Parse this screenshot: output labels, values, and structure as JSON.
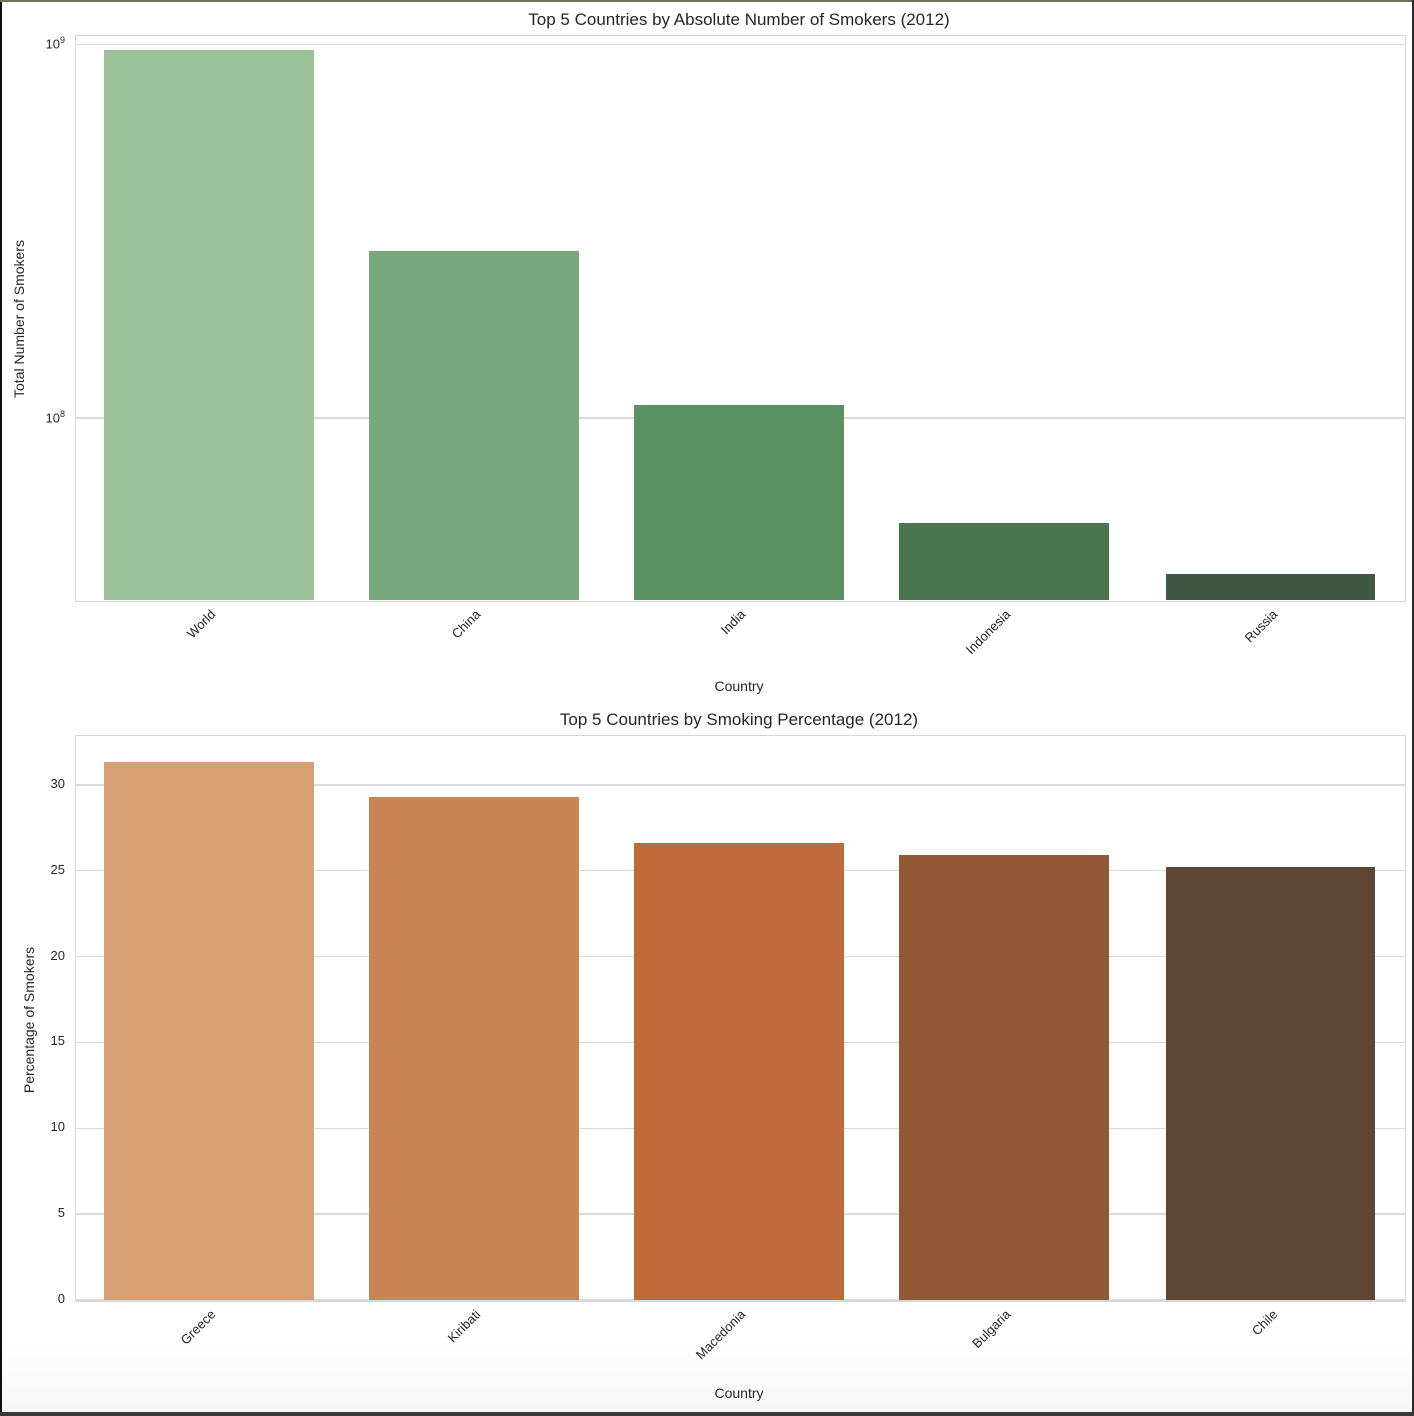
{
  "chart_data": [
    {
      "type": "bar",
      "title": "Top 5 Countries by Absolute Number of Smokers (2012)",
      "xlabel": "Country",
      "ylabel": "Total Number of Smokers",
      "yscale": "log",
      "ylim": [
        32500000,
        1060000000
      ],
      "yticks": [
        {
          "label": "10",
          "exp": "8",
          "value": 100000000
        },
        {
          "label": "10",
          "exp": "9",
          "value": 1000000000
        }
      ],
      "categories": [
        "World",
        "China",
        "India",
        "Indonesia",
        "Russia"
      ],
      "values": [
        969000000,
        280000000,
        108500000,
        52200000,
        38100000
      ],
      "colors": [
        "#9bc198",
        "#7aa87d",
        "#5a9160",
        "#4a7350",
        "#3f5743"
      ],
      "grid": true,
      "legend": null
    },
    {
      "type": "bar",
      "title": "Top 5 Countries by Smoking Percentage (2012)",
      "xlabel": "Country",
      "ylabel": "Percentage of Smokers",
      "yscale": "linear",
      "ylim": [
        0,
        32.9
      ],
      "yticks": [
        0,
        5,
        10,
        15,
        20,
        25,
        30
      ],
      "categories": [
        "Greece",
        "Kiribati",
        "Macedonia",
        "Bulgaria",
        "Chile"
      ],
      "values": [
        31.3,
        29.3,
        26.6,
        25.9,
        25.2
      ],
      "colors": [
        "#d99f74",
        "#cb8455",
        "#bf6b39",
        "#905835",
        "#5f4533"
      ],
      "grid": true,
      "legend": null
    }
  ]
}
